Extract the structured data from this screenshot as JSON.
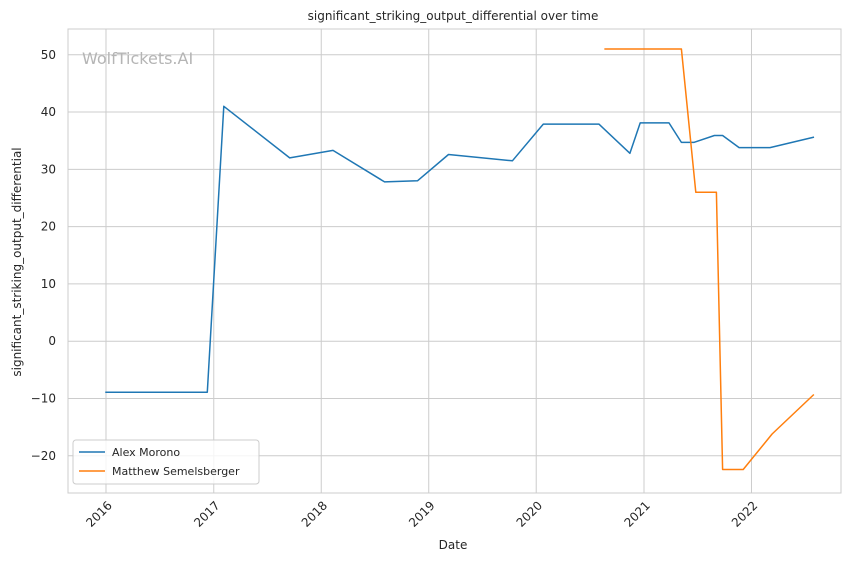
{
  "chart_data": {
    "type": "line",
    "title": "significant_striking_output_differential over time",
    "xlabel": "Date",
    "ylabel": "significant_striking_output_differential",
    "watermark": "WolfTickets.AI",
    "xlim": [
      "2015-08-25",
      "2022-11-01"
    ],
    "ylim": [
      -26.5,
      54.5
    ],
    "x_ticks": [
      "2016",
      "2017",
      "2018",
      "2019",
      "2020",
      "2021",
      "2022"
    ],
    "y_ticks": [
      50,
      40,
      30,
      20,
      10,
      0,
      -10,
      -20
    ],
    "y_tick_labels": [
      "50",
      "40",
      "30",
      "20",
      "10",
      "0",
      "−10",
      "−20"
    ],
    "grid": true,
    "legend_position": "bottom-left",
    "series": [
      {
        "name": "Alex Morono",
        "color": "#1f77b4",
        "points": [
          {
            "x": "2016-01-01",
            "y": -8.9
          },
          {
            "x": "2016-12-10",
            "y": -8.9
          },
          {
            "x": "2017-02-04",
            "y": 41.0
          },
          {
            "x": "2017-09-16",
            "y": 32.0
          },
          {
            "x": "2018-02-10",
            "y": 33.3
          },
          {
            "x": "2018-08-04",
            "y": 27.8
          },
          {
            "x": "2018-11-24",
            "y": 28.0
          },
          {
            "x": "2019-03-09",
            "y": 32.6
          },
          {
            "x": "2019-10-12",
            "y": 31.5
          },
          {
            "x": "2020-01-25",
            "y": 37.9
          },
          {
            "x": "2020-08-01",
            "y": 37.9
          },
          {
            "x": "2020-11-14",
            "y": 32.8
          },
          {
            "x": "2020-12-19",
            "y": 38.1
          },
          {
            "x": "2021-03-27",
            "y": 38.1
          },
          {
            "x": "2021-05-08",
            "y": 34.7
          },
          {
            "x": "2021-06-19",
            "y": 34.7
          },
          {
            "x": "2021-08-28",
            "y": 35.9
          },
          {
            "x": "2021-09-25",
            "y": 35.9
          },
          {
            "x": "2021-11-20",
            "y": 33.8
          },
          {
            "x": "2022-03-05",
            "y": 33.8
          },
          {
            "x": "2022-07-30",
            "y": 35.6
          }
        ]
      },
      {
        "name": "Matthew Semelsberger",
        "color": "#ff7f0e",
        "points": [
          {
            "x": "2020-08-22",
            "y": 51.0
          },
          {
            "x": "2021-05-08",
            "y": 51.0
          },
          {
            "x": "2021-06-26",
            "y": 26.0
          },
          {
            "x": "2021-09-04",
            "y": 26.0
          },
          {
            "x": "2021-09-25",
            "y": -22.4
          },
          {
            "x": "2021-12-04",
            "y": -22.4
          },
          {
            "x": "2022-03-12",
            "y": -16.2
          },
          {
            "x": "2022-07-30",
            "y": -9.4
          }
        ]
      }
    ]
  }
}
